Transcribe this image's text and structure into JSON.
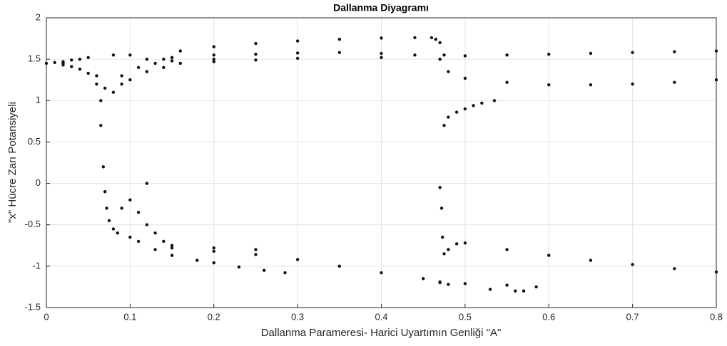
{
  "chart_data": {
    "type": "scatter",
    "title": "Dallanma Diyagramı",
    "xlabel": "Dallanma Parameresi- Harici Uyartımın Genliği \"A\"",
    "ylabel": "\"x\" Hücre Zarı Potansiyeli",
    "color": "#111111",
    "grid": true,
    "xlim": [
      0,
      0.8
    ],
    "xticks": [
      0,
      0.1,
      0.2,
      0.3,
      0.4,
      0.5,
      0.6,
      0.7,
      0.8
    ],
    "ylim": [
      -1.5,
      2
    ],
    "yticks": [
      -1.5,
      -1,
      -0.5,
      0,
      0.5,
      1,
      1.5,
      2
    ],
    "x": [
      0,
      0.01,
      0.02,
      0.02,
      0.02,
      0.03,
      0.03,
      0.04,
      0.04,
      0.05,
      0.05,
      0.06,
      0.06,
      0.065,
      0.065,
      0.07,
      0.08,
      0.08,
      0.09,
      0.09,
      0.1,
      0.1,
      0.11,
      0.12,
      0.12,
      0.13,
      0.14,
      0.14,
      0.15,
      0.16,
      0.2,
      0.25,
      0.3,
      0.35,
      0.4,
      0.44,
      0.46,
      0.465,
      0.47,
      0.475,
      0.2,
      0.3,
      0.4,
      0.5,
      0.55,
      0.6,
      0.65,
      0.7,
      0.75,
      0.8,
      0.15,
      0.2,
      0.25,
      0.3,
      0.35,
      0.4,
      0.44,
      0.47,
      0.48,
      0.5,
      0.55,
      0.6,
      0.65,
      0.7,
      0.75,
      0.8,
      0.16,
      0.2,
      0.25,
      0.475,
      0.48,
      0.49,
      0.5,
      0.51,
      0.52,
      0.535,
      0.068,
      0.07,
      0.072,
      0.075,
      0.08,
      0.085,
      0.09,
      0.1,
      0.11,
      0.12,
      0.12,
      0.13,
      0.14,
      0.1,
      0.11,
      0.13,
      0.15,
      0.15,
      0.18,
      0.2,
      0.23,
      0.26,
      0.285,
      0.15,
      0.2,
      0.25,
      0.3,
      0.35,
      0.4,
      0.45,
      0.47,
      0.5,
      0.55,
      0.585,
      0.2,
      0.25,
      0.47,
      0.472,
      0.473,
      0.475,
      0.48,
      0.49,
      0.5,
      0.55,
      0.6,
      0.65,
      0.7,
      0.75,
      0.8,
      0.47,
      0.48,
      0.53,
      0.56,
      0.57
    ],
    "values": [
      1.45,
      1.46,
      1.47,
      1.45,
      1.43,
      1.49,
      1.41,
      1.5,
      1.38,
      1.52,
      1.33,
      1.3,
      1.2,
      1.0,
      0.7,
      1.15,
      1.1,
      1.55,
      1.2,
      1.3,
      1.25,
      1.55,
      1.4,
      1.35,
      1.5,
      1.45,
      1.4,
      1.5,
      1.48,
      1.6,
      1.65,
      1.69,
      1.72,
      1.74,
      1.755,
      1.76,
      1.76,
      1.74,
      1.7,
      1.55,
      1.5,
      1.51,
      1.52,
      1.54,
      1.55,
      1.56,
      1.57,
      1.58,
      1.59,
      1.6,
      1.52,
      1.55,
      1.56,
      1.575,
      1.58,
      1.57,
      1.55,
      1.5,
      1.35,
      1.27,
      1.22,
      1.19,
      1.19,
      1.2,
      1.22,
      1.25,
      1.45,
      1.47,
      1.49,
      0.7,
      0.8,
      0.86,
      0.9,
      0.94,
      0.97,
      1.0,
      0.2,
      -0.1,
      -0.3,
      -0.45,
      -0.55,
      -0.6,
      -0.3,
      -0.2,
      -0.35,
      0.0,
      -0.5,
      -0.6,
      -0.7,
      -0.65,
      -0.7,
      -0.8,
      -0.75,
      -0.87,
      -0.93,
      -0.96,
      -1.01,
      -1.05,
      -1.08,
      -0.78,
      -0.82,
      -0.86,
      -0.92,
      -1.0,
      -1.08,
      -1.15,
      -1.19,
      -1.21,
      -1.23,
      -1.25,
      -0.78,
      -0.8,
      -0.05,
      -0.3,
      -0.65,
      -0.85,
      -0.8,
      -0.73,
      -0.72,
      -0.8,
      -0.87,
      -0.93,
      -0.98,
      -1.03,
      -1.07,
      -1.2,
      -1.22,
      -1.28,
      -1.3,
      -1.3
    ]
  }
}
